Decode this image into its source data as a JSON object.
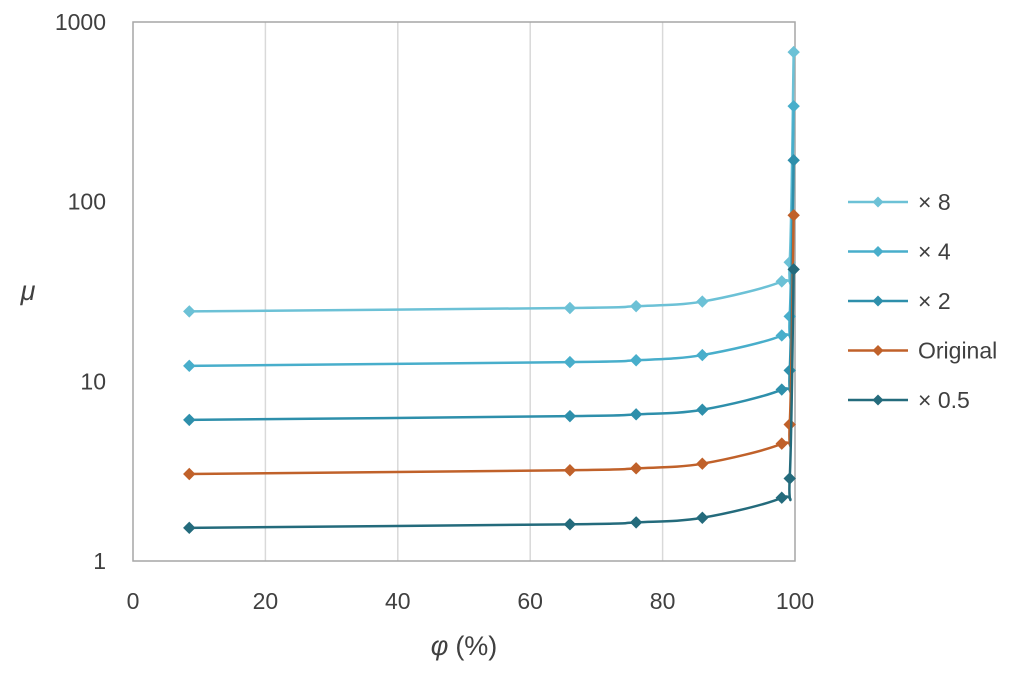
{
  "chart_data": {
    "type": "line",
    "xlabel_symbol": "φ",
    "xlabel_unit": "(%)",
    "ylabel": "μ",
    "xlim": [
      0,
      100
    ],
    "ylim": [
      1,
      1000
    ],
    "yscale": "log",
    "xticks": [
      "0",
      "20",
      "40",
      "60",
      "80",
      "100"
    ],
    "yticks": [
      "1",
      "10",
      "100",
      "1000"
    ],
    "grid": "vertical",
    "legend_position": "right",
    "x": [
      8.5,
      66,
      76,
      86,
      98,
      99.2,
      99.5,
      99.8
    ],
    "series": [
      {
        "name": "× 8",
        "color": "#6cc1d6",
        "values": [
          24.5,
          25.6,
          26.2,
          27.8,
          36,
          46,
          0,
          680
        ]
      },
      {
        "name": "× 4",
        "color": "#48aecb",
        "values": [
          12.2,
          12.8,
          13.1,
          14,
          18,
          23,
          0,
          340
        ]
      },
      {
        "name": "× 2",
        "color": "#2e8fab",
        "values": [
          6.1,
          6.4,
          6.55,
          6.95,
          9,
          11.5,
          0,
          170
        ]
      },
      {
        "name": "Original",
        "color": "#c0612a",
        "values": [
          3.05,
          3.2,
          3.28,
          3.48,
          4.5,
          5.75,
          0,
          84
        ]
      },
      {
        "name": "× 0.5",
        "color": "#246b7c",
        "values": [
          1.53,
          1.6,
          1.64,
          1.74,
          2.25,
          2.88,
          0,
          42
        ]
      }
    ]
  }
}
